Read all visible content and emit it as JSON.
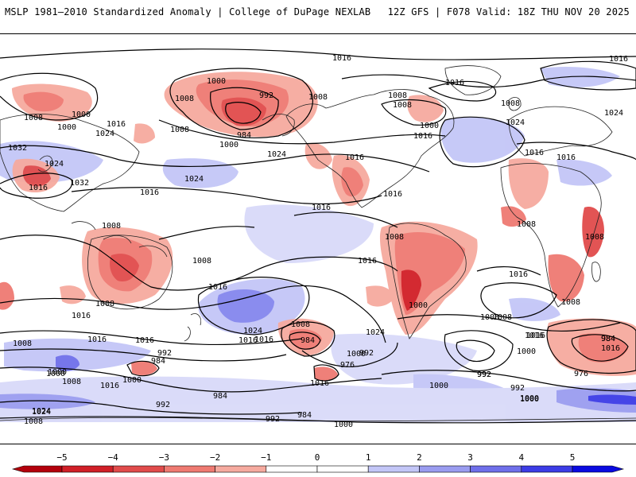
{
  "header": {
    "title_left": "MSLP 1981–2010 Standardized Anomaly | College of DuPage NEXLAB",
    "title_right": "12Z GFS | F078 Valid: 18Z THU NOV 20 2025"
  },
  "map": {
    "variable": "MSLP standardized anomaly",
    "contour_labels_hpa": [
      {
        "id": "l1",
        "text": "1016"
      },
      {
        "id": "l2",
        "text": "1016"
      },
      {
        "id": "l3",
        "text": "1000"
      },
      {
        "id": "l4",
        "text": "992"
      },
      {
        "id": "l5",
        "text": "1008"
      },
      {
        "id": "l6",
        "text": "1008"
      },
      {
        "id": "l7",
        "text": "1008"
      },
      {
        "id": "l8",
        "text": "1000"
      },
      {
        "id": "l9",
        "text": "1016"
      },
      {
        "id": "l10",
        "text": "1024"
      },
      {
        "id": "l11",
        "text": "1008"
      },
      {
        "id": "l12",
        "text": "984"
      },
      {
        "id": "l13",
        "text": "1000"
      },
      {
        "id": "l14",
        "text": "1024"
      },
      {
        "id": "l15",
        "text": "1032"
      },
      {
        "id": "l16",
        "text": "1024"
      },
      {
        "id": "l17",
        "text": "1016"
      },
      {
        "id": "l18",
        "text": "1032"
      },
      {
        "id": "l19",
        "text": "1024"
      },
      {
        "id": "l20",
        "text": "1016"
      },
      {
        "id": "l21",
        "text": "1016"
      },
      {
        "id": "l22",
        "text": "1016"
      },
      {
        "id": "l23",
        "text": "1008"
      },
      {
        "id": "l24",
        "text": "1000"
      },
      {
        "id": "l25",
        "text": "1016"
      },
      {
        "id": "l26",
        "text": "1008"
      },
      {
        "id": "l27",
        "text": "1008"
      },
      {
        "id": "l28",
        "text": "1024"
      },
      {
        "id": "l29",
        "text": "1016"
      },
      {
        "id": "l30",
        "text": "1024"
      },
      {
        "id": "l31",
        "text": "1016"
      },
      {
        "id": "l32",
        "text": "1016"
      },
      {
        "id": "l33",
        "text": "1008"
      },
      {
        "id": "l34",
        "text": "1008"
      },
      {
        "id": "l35",
        "text": "1016"
      },
      {
        "id": "l36",
        "text": "1016"
      },
      {
        "id": "l37",
        "text": "1008"
      },
      {
        "id": "l38",
        "text": "1016"
      },
      {
        "id": "l39",
        "text": "1008"
      },
      {
        "id": "l40",
        "text": "1016"
      },
      {
        "id": "l41",
        "text": "1024"
      },
      {
        "id": "l42",
        "text": "1008"
      },
      {
        "id": "l43",
        "text": "1016"
      },
      {
        "id": "l44",
        "text": "1016"
      },
      {
        "id": "l45",
        "text": "1008"
      },
      {
        "id": "l46",
        "text": "1024"
      },
      {
        "id": "l47",
        "text": "1016"
      },
      {
        "id": "l48",
        "text": "1000"
      },
      {
        "id": "l49",
        "text": "1016"
      },
      {
        "id": "l50",
        "text": "1016"
      },
      {
        "id": "l51",
        "text": "1008"
      },
      {
        "id": "l52",
        "text": "992"
      },
      {
        "id": "l53",
        "text": "984"
      },
      {
        "id": "l54",
        "text": "1008"
      },
      {
        "id": "l55",
        "text": "984"
      },
      {
        "id": "l56",
        "text": "992"
      },
      {
        "id": "l57",
        "text": "976"
      },
      {
        "id": "l58",
        "text": "1000"
      },
      {
        "id": "l59",
        "text": "1024"
      },
      {
        "id": "l60",
        "text": "1016"
      },
      {
        "id": "l61",
        "text": "1000"
      },
      {
        "id": "l62",
        "text": "1016"
      },
      {
        "id": "l63",
        "text": "1000"
      },
      {
        "id": "l64",
        "text": "1008"
      },
      {
        "id": "l65",
        "text": "1008"
      },
      {
        "id": "l66",
        "text": "1000"
      },
      {
        "id": "l67",
        "text": "992"
      },
      {
        "id": "l68",
        "text": "1000"
      },
      {
        "id": "l69",
        "text": "1016"
      },
      {
        "id": "l70",
        "text": "1000"
      },
      {
        "id": "l71",
        "text": "984"
      },
      {
        "id": "l72",
        "text": "976"
      },
      {
        "id": "l73",
        "text": "992"
      },
      {
        "id": "l74",
        "text": "1000"
      },
      {
        "id": "l75",
        "text": "992"
      },
      {
        "id": "l76",
        "text": "1008"
      },
      {
        "id": "l77",
        "text": "1024"
      },
      {
        "id": "l78",
        "text": "1008"
      },
      {
        "id": "l79",
        "text": "1016"
      },
      {
        "id": "l80",
        "text": "1000"
      },
      {
        "id": "l81",
        "text": "984"
      },
      {
        "id": "l82",
        "text": "992"
      },
      {
        "id": "l83",
        "text": "984"
      },
      {
        "id": "l84",
        "text": "992"
      },
      {
        "id": "l85",
        "text": "984"
      },
      {
        "id": "l86",
        "text": "1000"
      },
      {
        "id": "l87",
        "text": "1016"
      },
      {
        "id": "l88",
        "text": "1000"
      },
      {
        "id": "l89",
        "text": "1008"
      }
    ]
  },
  "legend": {
    "ticks": [
      "−5",
      "−4",
      "−3",
      "−2",
      "−1",
      "0",
      "1",
      "2",
      "3",
      "4",
      "5"
    ],
    "colors": [
      "#b3000c",
      "#d11f27",
      "#e14b4b",
      "#ef7a72",
      "#f6aa9f",
      "#ffffff",
      "#ffffff",
      "#c3c6f7",
      "#9a9cf0",
      "#6f6fea",
      "#3c3ce6",
      "#0a0ae0"
    ]
  }
}
